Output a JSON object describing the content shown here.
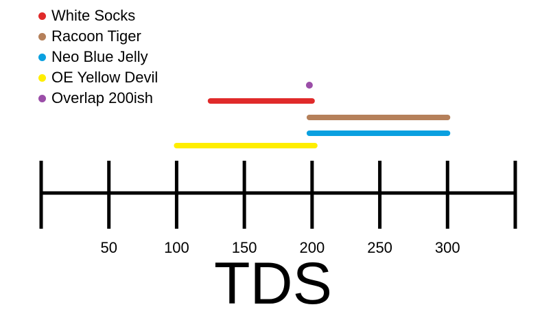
{
  "legend": [
    {
      "label": "White Socks",
      "color": "#e02a2a"
    },
    {
      "label": "Racoon Tiger",
      "color": "#b5805a"
    },
    {
      "label": "Neo Blue Jelly",
      "color": "#0aa0e0"
    },
    {
      "label": "OE Yellow Devil",
      "color": "#ffee00"
    },
    {
      "label": "Overlap 200ish",
      "color": "#9b4ea8"
    }
  ],
  "axis": {
    "title": "TDS",
    "tick_labels": [
      "50",
      "100",
      "150",
      "200",
      "250",
      "300"
    ],
    "min": 0,
    "max": 350,
    "ticks": [
      0,
      50,
      100,
      150,
      200,
      250,
      300,
      350
    ]
  },
  "ranges": [
    {
      "name": "White Socks",
      "start": 125,
      "end": 200,
      "color": "#e02a2a"
    },
    {
      "name": "Racoon Tiger",
      "start": 198,
      "end": 300,
      "color": "#b5805a"
    },
    {
      "name": "Neo Blue Jelly",
      "start": 198,
      "end": 300,
      "color": "#0aa0e0"
    },
    {
      "name": "OE Yellow Devil",
      "start": 100,
      "end": 202,
      "color": "#ffee00"
    }
  ],
  "overlap_point": {
    "name": "Overlap 200ish",
    "value": 198,
    "color": "#9b4ea8"
  }
}
